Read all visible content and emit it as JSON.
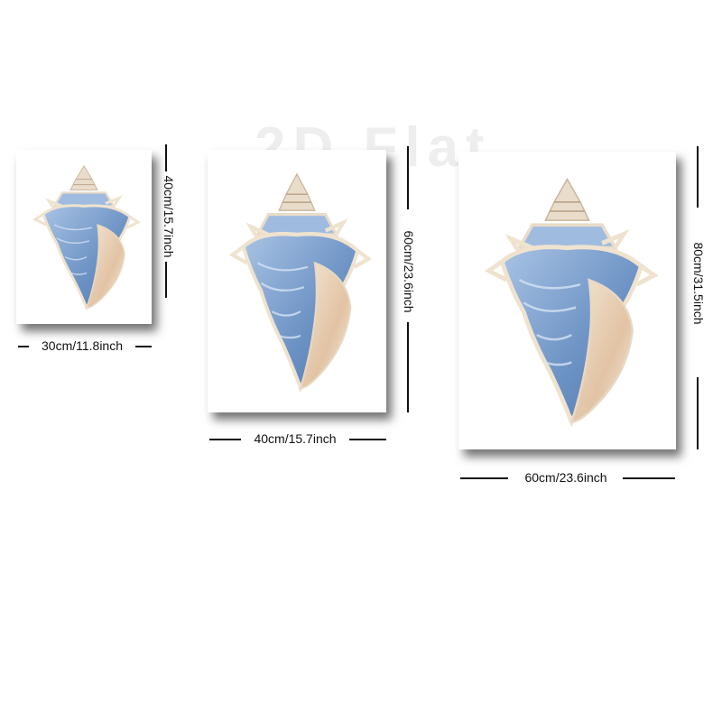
{
  "watermark": "2D Flat",
  "colors": {
    "shell_blue": "#6f95c6",
    "shell_cream": "#efe3cf",
    "shell_sand": "#d9b493",
    "frame_shadow": "#000000"
  },
  "panels": [
    {
      "name": "small",
      "width_label": "30cm/11.8inch",
      "height_label": "40cm/15.7inch"
    },
    {
      "name": "medium",
      "width_label": "40cm/15.7inch",
      "height_label": "60cm/23.6inch"
    },
    {
      "name": "large",
      "width_label": "60cm/23.6inch",
      "height_label": "80cm/31.5inch"
    }
  ]
}
